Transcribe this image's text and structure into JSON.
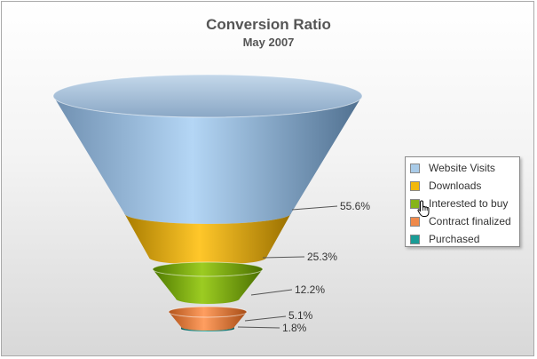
{
  "chart_data": {
    "type": "funnel",
    "title": "Conversion Ratio",
    "subtitle": "May 2007",
    "categories": [
      "Website Visits",
      "Downloads",
      "Interested to buy",
      "Contract finalized",
      "Purchased"
    ],
    "values": [
      55.6,
      25.3,
      12.2,
      5.1,
      1.8
    ],
    "value_labels": [
      "55.6%",
      "25.3%",
      "12.2%",
      "5.1%",
      "1.8%"
    ],
    "colors": [
      "#a9cbe8",
      "#f2b90d",
      "#86b419",
      "#f08a4b",
      "#1a9c96"
    ],
    "legend_position": "right",
    "grid": false
  },
  "legend": {
    "items": [
      "Website Visits",
      "Downloads",
      "Interested to buy",
      "Contract finalized",
      "Purchased"
    ]
  }
}
